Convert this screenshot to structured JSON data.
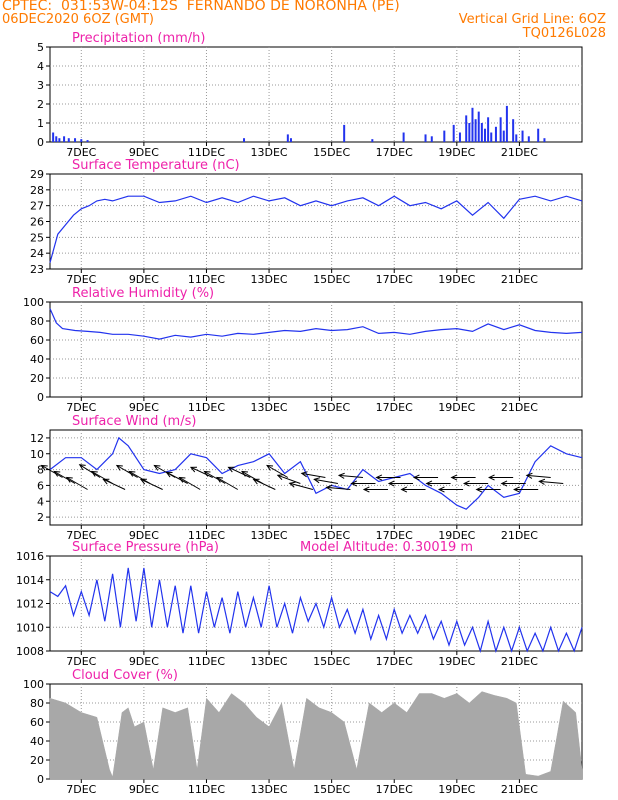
{
  "header": {
    "line1": "CPTEC:  031:53W-04:12S  FERNANDO DE NORONHA (PE)",
    "date": "06DEC2020 6OZ (GMT)",
    "grid_note": "Vertical Grid Line: 6OZ",
    "code": "TQ0126L028"
  },
  "colors": {
    "header": "#ff7a00",
    "title": "#ee22aa",
    "line": "#2233ee",
    "bar": "#2233ee",
    "cloud": "#a8a8a8",
    "grid": "#9a9a9a"
  },
  "x_ticks": [
    "7DEC",
    "9DEC",
    "11DEC",
    "13DEC",
    "15DEC",
    "17DEC",
    "19DEC",
    "21DEC"
  ],
  "chart_data": [
    {
      "type": "bar",
      "title": "Precipitation (mm/h)",
      "ylim": [
        0,
        5
      ],
      "yticks": [
        0,
        1,
        2,
        3,
        4,
        5
      ],
      "x_unit": "days since 06DEC2020 06Z",
      "x": [
        0.1,
        0.2,
        0.3,
        0.45,
        0.6,
        0.8,
        1.0,
        1.2,
        6.2,
        7.6,
        7.7,
        9.4,
        10.3,
        11.3,
        12.0,
        12.2,
        12.6,
        12.9,
        13.1,
        13.3,
        13.4,
        13.5,
        13.6,
        13.7,
        13.8,
        13.9,
        14.0,
        14.1,
        14.25,
        14.4,
        14.5,
        14.6,
        14.8,
        14.9,
        15.1,
        15.3,
        15.6,
        15.8
      ],
      "values": [
        0.5,
        0.3,
        0.2,
        0.3,
        0.2,
        0.2,
        0.15,
        0.1,
        0.2,
        0.4,
        0.2,
        0.9,
        0.15,
        0.5,
        0.4,
        0.3,
        0.6,
        0.9,
        0.5,
        1.4,
        1.0,
        1.8,
        1.2,
        1.6,
        1.0,
        0.7,
        1.3,
        0.5,
        0.8,
        1.3,
        0.6,
        1.9,
        1.2,
        0.4,
        0.6,
        0.3,
        0.7,
        0.2
      ]
    },
    {
      "type": "line",
      "title": "Surface Temperature (nC)",
      "ylim": [
        23,
        29
      ],
      "yticks": [
        23,
        24,
        25,
        26,
        27,
        28,
        29
      ],
      "x_unit": "days since 06DEC2020 06Z",
      "x": [
        0,
        0.25,
        0.5,
        0.75,
        1,
        1.25,
        1.5,
        1.75,
        2,
        2.5,
        3,
        3.5,
        4,
        4.5,
        5,
        5.5,
        6,
        6.5,
        7,
        7.5,
        8,
        8.5,
        9,
        9.5,
        10,
        10.5,
        11,
        11.5,
        12,
        12.5,
        13,
        13.5,
        14,
        14.5,
        15,
        15.5,
        16,
        16.5,
        17
      ],
      "values": [
        23.4,
        25.2,
        25.8,
        26.4,
        26.8,
        27.0,
        27.3,
        27.4,
        27.3,
        27.6,
        27.6,
        27.2,
        27.3,
        27.6,
        27.2,
        27.5,
        27.2,
        27.6,
        27.3,
        27.5,
        27.0,
        27.3,
        27.0,
        27.3,
        27.5,
        27.0,
        27.6,
        27.0,
        27.2,
        26.8,
        27.3,
        26.4,
        27.2,
        26.2,
        27.4,
        27.6,
        27.3,
        27.6,
        27.3
      ],
      "series_name": "",
      "note": ""
    },
    {
      "type": "line",
      "title": "Relative Humidity (%)",
      "ylim": [
        0,
        100
      ],
      "yticks": [
        0,
        20,
        40,
        60,
        80,
        100
      ],
      "x_unit": "days since 06DEC2020 06Z",
      "x": [
        0,
        0.2,
        0.4,
        0.8,
        1.2,
        1.6,
        2,
        2.5,
        3,
        3.5,
        4,
        4.5,
        5,
        5.5,
        6,
        6.5,
        7,
        7.5,
        8,
        8.5,
        9,
        9.5,
        10,
        10.5,
        11,
        11.5,
        12,
        12.5,
        13,
        13.5,
        14,
        14.5,
        15,
        15.5,
        16,
        16.5,
        17
      ],
      "values": [
        93,
        78,
        72,
        70,
        69,
        68,
        66,
        66,
        64,
        61,
        65,
        63,
        66,
        64,
        67,
        66,
        68,
        70,
        69,
        72,
        70,
        71,
        74,
        67,
        68,
        66,
        69,
        71,
        72,
        69,
        77,
        71,
        76,
        70,
        68,
        67,
        68
      ]
    },
    {
      "type": "line",
      "title": "Surface Wind (m/s)",
      "ylim": [
        1,
        13
      ],
      "yticks": [
        2,
        4,
        6,
        8,
        10,
        12
      ],
      "x_unit": "days since 06DEC2020 06Z",
      "x": [
        0,
        0.5,
        1,
        1.5,
        2,
        2.2,
        2.5,
        3,
        3.5,
        4,
        4.5,
        5,
        5.5,
        6,
        6.5,
        7,
        7.5,
        8,
        8.5,
        9,
        9.5,
        10,
        10.5,
        11,
        11.5,
        12,
        12.5,
        13,
        13.3,
        13.7,
        14,
        14.5,
        15,
        15.5,
        16,
        16.5,
        17
      ],
      "values": [
        8,
        9.5,
        9.5,
        8,
        10,
        12,
        11,
        8,
        7.5,
        8,
        10,
        9.5,
        7.5,
        8.5,
        9,
        10,
        7.5,
        9,
        5,
        6,
        5.5,
        8,
        6.5,
        7,
        7.5,
        6,
        5,
        3.5,
        3,
        4.5,
        6,
        4.5,
        5,
        9,
        11,
        10,
        9.5
      ],
      "barb_x": [
        0.4,
        0.8,
        1.2,
        1.6,
        2.0,
        2.4,
        2.8,
        3.2,
        3.6,
        4.0,
        4.4,
        4.8,
        5.2,
        5.6,
        6.0,
        6.4,
        6.8,
        7.2,
        7.6,
        8.0,
        8.4,
        8.8,
        9.2,
        9.6,
        10.0,
        10.4,
        10.8,
        11.2,
        11.6,
        12.0,
        12.4,
        12.8,
        13.2,
        13.6,
        14.0,
        14.4,
        14.8,
        15.2,
        15.6,
        16.0,
        16.4
      ],
      "barb_angle_deg": [
        150,
        150,
        150,
        148,
        150,
        155,
        150,
        150,
        155,
        150,
        152,
        150,
        155,
        150,
        150,
        155,
        150,
        155,
        150,
        160,
        165,
        170,
        170,
        175,
        175,
        180,
        180,
        180,
        180,
        180,
        180,
        180,
        180,
        180,
        180,
        180,
        180,
        180,
        180,
        175,
        175
      ]
    },
    {
      "type": "line",
      "title": "Surface Pressure (hPa)",
      "annotation": "Model Altitude: 0.30019 m",
      "ylim": [
        1008,
        1016
      ],
      "yticks": [
        1008,
        1010,
        1012,
        1014,
        1016
      ],
      "x_unit": "days since 06DEC2020 06Z",
      "x": [
        0,
        0.25,
        0.5,
        0.75,
        1,
        1.25,
        1.5,
        1.75,
        2,
        2.25,
        2.5,
        2.75,
        3,
        3.25,
        3.5,
        3.75,
        4,
        4.25,
        4.5,
        4.75,
        5,
        5.25,
        5.5,
        5.75,
        6,
        6.25,
        6.5,
        6.75,
        7,
        7.25,
        7.5,
        7.75,
        8,
        8.25,
        8.5,
        8.75,
        9,
        9.25,
        9.5,
        9.75,
        10,
        10.25,
        10.5,
        10.75,
        11,
        11.25,
        11.5,
        11.75,
        12,
        12.25,
        12.5,
        12.75,
        13,
        13.25,
        13.5,
        13.75,
        14,
        14.25,
        14.5,
        14.75,
        15,
        15.25,
        15.5,
        15.75,
        16,
        16.25,
        16.5,
        16.75,
        17
      ],
      "values": [
        1013.0,
        1012.6,
        1013.5,
        1011.0,
        1013.0,
        1011.0,
        1014.0,
        1010.5,
        1014.5,
        1010.0,
        1015.0,
        1010.5,
        1015.0,
        1010.0,
        1014.0,
        1010.0,
        1013.5,
        1009.5,
        1013.5,
        1009.5,
        1013.0,
        1010.0,
        1012.5,
        1009.5,
        1013.0,
        1010.0,
        1012.5,
        1010.0,
        1013.5,
        1010.0,
        1012.0,
        1009.5,
        1012.5,
        1010.5,
        1012.0,
        1010.0,
        1012.5,
        1010.0,
        1011.5,
        1009.5,
        1011.5,
        1009.0,
        1011.0,
        1009.0,
        1011.5,
        1009.5,
        1011.0,
        1009.5,
        1011.0,
        1009.0,
        1010.5,
        1008.5,
        1010.5,
        1008.5,
        1010.0,
        1008.0,
        1010.5,
        1008.0,
        1010.0,
        1008.0,
        1010.0,
        1008.0,
        1009.5,
        1008.0,
        1010.0,
        1008.0,
        1009.5,
        1008.0,
        1010.0
      ]
    },
    {
      "type": "area",
      "title": "Cloud Cover (%)",
      "ylim": [
        0,
        100
      ],
      "yticks": [
        0,
        20,
        40,
        60,
        80,
        100
      ],
      "x_unit": "days since 06DEC2020 06Z",
      "x": [
        0,
        0.5,
        1.0,
        1.5,
        1.9,
        2.0,
        2.3,
        2.5,
        2.7,
        3.0,
        3.3,
        3.6,
        4.0,
        4.4,
        4.7,
        5.0,
        5.4,
        5.8,
        6.2,
        6.6,
        7.0,
        7.4,
        7.8,
        8.2,
        8.6,
        9.0,
        9.4,
        9.8,
        10.2,
        10.6,
        11.0,
        11.4,
        11.8,
        12.2,
        12.6,
        13.0,
        13.4,
        13.8,
        14.2,
        14.6,
        14.9,
        15.2,
        15.6,
        16.0,
        16.4,
        16.8,
        17.0
      ],
      "values": [
        85,
        80,
        70,
        65,
        10,
        2,
        70,
        75,
        55,
        60,
        10,
        75,
        70,
        75,
        10,
        85,
        70,
        90,
        80,
        65,
        55,
        80,
        10,
        85,
        75,
        70,
        60,
        10,
        80,
        70,
        80,
        70,
        90,
        90,
        85,
        90,
        80,
        92,
        88,
        85,
        80,
        5,
        3,
        8,
        82,
        70,
        10
      ]
    }
  ]
}
